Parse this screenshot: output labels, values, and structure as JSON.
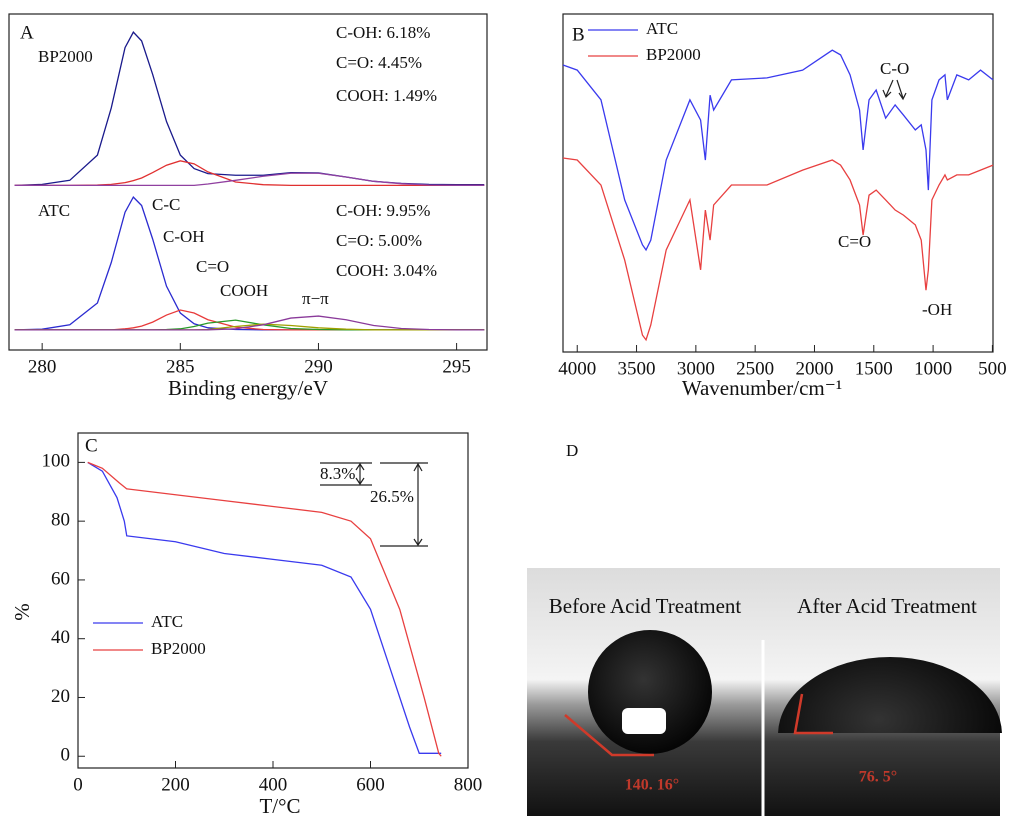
{
  "chart_data": [
    {
      "type": "line",
      "label": "A",
      "x_label": "Binding energy/eV",
      "xlim": [
        278.8,
        296.1
      ],
      "xticks": [
        280,
        285,
        290,
        295
      ],
      "ylim": [
        0,
        100
      ],
      "x": [
        279,
        280,
        281,
        282,
        282.5,
        283,
        283.3,
        283.6,
        284,
        284.5,
        285,
        285.5,
        286,
        287,
        288,
        289,
        290,
        291,
        292,
        293,
        294,
        295,
        296
      ],
      "series": [
        {
          "name": "BP2000",
          "color": "#1a1a8c",
          "values": [
            49.0,
            49.3,
            50.5,
            58,
            72,
            90,
            94.6,
            92,
            82,
            68,
            58,
            54,
            52.5,
            52,
            52,
            52.8,
            52.7,
            51.5,
            50.2,
            49.6,
            49.3,
            49.2,
            49.2
          ]
        },
        {
          "color": "#e03030",
          "values": [
            49,
            49,
            49,
            49.1,
            49.3,
            49.8,
            50.4,
            51.2,
            52.8,
            55,
            56.3,
            55.4,
            53,
            50,
            49.2,
            49,
            49,
            49,
            49,
            49,
            49,
            49,
            49
          ]
        },
        {
          "color": "#9040a0",
          "values": [
            49,
            49,
            49,
            49,
            49,
            49,
            49,
            49,
            49,
            49,
            49,
            49,
            49.4,
            50.5,
            51.7,
            52.6,
            52.6,
            51.5,
            50.2,
            49.5,
            49.1,
            49,
            49
          ]
        },
        {
          "name": "C-C",
          "color": "#2b2bd0",
          "values": [
            6,
            6.2,
            7.5,
            14,
            26,
            41,
            45.5,
            43,
            33,
            19,
            11,
            7.8,
            6.6,
            6.1,
            6,
            6,
            6,
            6,
            6,
            6,
            6,
            6,
            6
          ]
        },
        {
          "name": "C-OH",
          "color": "#e83a3a",
          "values": [
            6,
            6,
            6,
            6,
            6,
            6.3,
            6.6,
            7.1,
            8.3,
            10.4,
            11.9,
            11,
            9,
            6.8,
            6.1,
            6,
            6,
            6,
            6,
            6,
            6,
            6,
            6
          ]
        },
        {
          "name": "C=O",
          "color": "#2a9a2a",
          "values": [
            6,
            6,
            6,
            6,
            6,
            6,
            6,
            6,
            6,
            6.1,
            6.3,
            7,
            8,
            8.9,
            7.5,
            6.4,
            6.1,
            6,
            6,
            6,
            6,
            6,
            6
          ]
        },
        {
          "name": "COOH",
          "color": "#a0a000",
          "values": [
            6,
            6,
            6,
            6,
            6,
            6,
            6,
            6,
            6,
            6,
            6,
            6,
            6.1,
            7,
            7.7,
            7.3,
            6.6,
            6.2,
            6,
            6,
            6,
            6,
            6
          ]
        },
        {
          "name": "π−π",
          "color": "#8a3a9a",
          "values": [
            6,
            6,
            6,
            6,
            6,
            6,
            6,
            6,
            6,
            6,
            6,
            6,
            6,
            6.3,
            7.5,
            9.5,
            10.1,
            9,
            7.3,
            6.4,
            6.1,
            6,
            6
          ]
        }
      ],
      "annotations": [
        "ATC",
        "C-OH: 6.18%",
        "C=O: 4.45%",
        "COOH: 1.49%",
        "C-OH: 9.95%",
        "C=O: 5.00%",
        "COOH: 3.04%"
      ]
    },
    {
      "type": "line",
      "label": "B",
      "x_label": "Wavenumber/cm⁻¹",
      "legend": "upper left",
      "xlim": [
        4120,
        495
      ],
      "xticks": [
        4000,
        3500,
        3000,
        2500,
        2000,
        1500,
        1000,
        500
      ],
      "ylim": [
        0,
        100
      ],
      "x": [
        4120,
        4000,
        3800,
        3600,
        3450,
        3420,
        3380,
        3250,
        3050,
        2960,
        2920,
        2880,
        2850,
        2700,
        2400,
        2100,
        1850,
        1780,
        1700,
        1620,
        1590,
        1540,
        1480,
        1400,
        1320,
        1250,
        1150,
        1100,
        1060,
        1040,
        1010,
        950,
        900,
        880,
        800,
        700,
        600,
        495
      ],
      "series": [
        {
          "name": "ATC",
          "color": "#3a3aee",
          "values": [
            84.9,
            83.4,
            74.6,
            45.0,
            31.7,
            30.2,
            33.1,
            56.8,
            74.6,
            68.6,
            56.8,
            76.0,
            71.6,
            80.5,
            81.1,
            83.4,
            89.3,
            87.9,
            82.0,
            71.6,
            59.8,
            74.6,
            77.5,
            69.2,
            73.1,
            70.1,
            65.7,
            67.2,
            59.8,
            47.9,
            74.6,
            80.5,
            82.0,
            74.6,
            82.0,
            80.5,
            83.4,
            80.5
          ]
        },
        {
          "name": "BP2000",
          "color": "#e84040",
          "values": [
            57.4,
            56.8,
            49.4,
            27.2,
            5.0,
            3.6,
            8.0,
            30.2,
            45.0,
            24.3,
            42.0,
            33.1,
            43.5,
            49.4,
            49.4,
            53.8,
            56.8,
            55.3,
            50.9,
            43.5,
            34.6,
            46.4,
            47.9,
            45.0,
            42.0,
            40.5,
            37.6,
            33.1,
            18.3,
            24.3,
            45.0,
            49.4,
            52.4,
            50.9,
            52.4,
            52.4,
            53.8,
            55.3
          ]
        }
      ],
      "annotations": [
        "C-O",
        "C=O",
        "-OH"
      ]
    },
    {
      "type": "line",
      "label": "C",
      "x_label": "T/°C",
      "y_label": "%",
      "legend": "center left",
      "xlim": [
        0,
        800
      ],
      "xticks": [
        0,
        200,
        400,
        600,
        800
      ],
      "ylim": [
        -4,
        110
      ],
      "yticks": [
        0,
        20,
        40,
        60,
        80,
        100
      ],
      "series": [
        {
          "name": "ATC",
          "color": "#3a3aee",
          "x": [
            20,
            50,
            80,
            95,
            100,
            200,
            300,
            400,
            500,
            560,
            600,
            640,
            680,
            700,
            745
          ],
          "values": [
            100,
            97,
            88,
            80,
            75,
            73,
            69,
            67,
            65,
            61,
            50,
            30,
            10,
            1,
            1
          ]
        },
        {
          "name": "BP2000",
          "color": "#e84040",
          "x": [
            20,
            50,
            85,
            100,
            200,
            300,
            400,
            500,
            560,
            600,
            660,
            710,
            740,
            745
          ],
          "values": [
            100,
            98,
            93,
            91,
            89,
            87,
            85,
            83,
            80,
            74,
            50,
            20,
            1,
            0
          ]
        }
      ],
      "annotations": [
        "8.3%",
        "26.5%"
      ]
    }
  ],
  "panel_d": {
    "label": "D",
    "before": "Before Acid Treatment",
    "after": "After Acid Treatment",
    "before_angle": "140. 16°",
    "after_angle": "76. 5°"
  }
}
